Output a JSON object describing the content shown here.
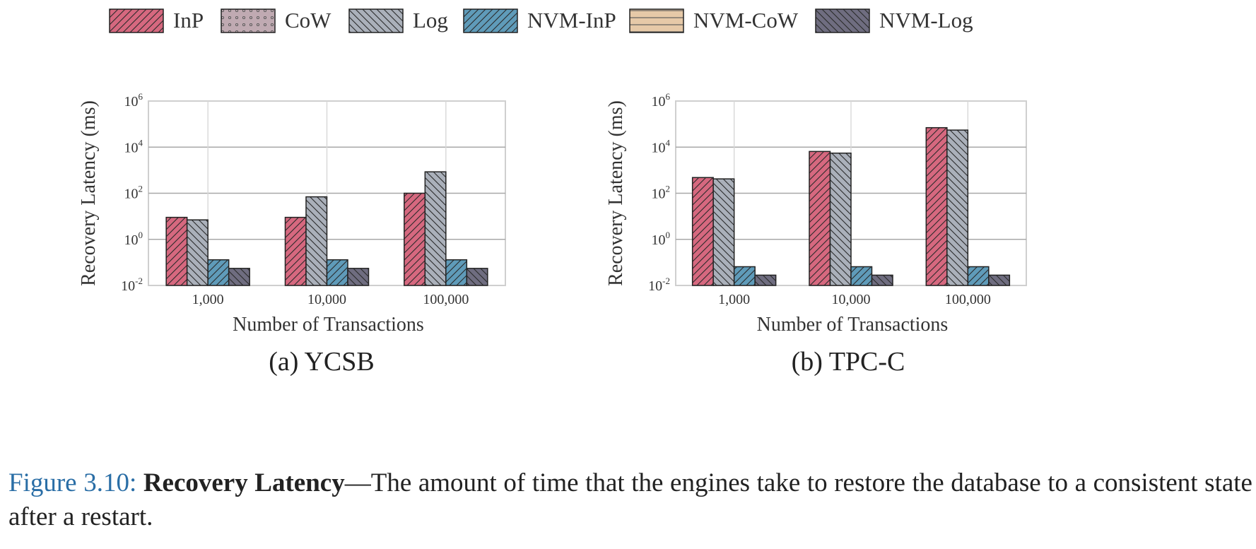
{
  "legend": [
    {
      "name": "InP",
      "color": "#d6687f",
      "pattern": "diag-fwd"
    },
    {
      "name": "CoW",
      "color": "#c0aab2",
      "pattern": "dots"
    },
    {
      "name": "Log",
      "color": "#aab0ba",
      "pattern": "diag-back"
    },
    {
      "name": "NVM-InP",
      "color": "#5f9bb9",
      "pattern": "diag-fwd"
    },
    {
      "name": "NVM-CoW",
      "color": "#e6c9a8",
      "pattern": "horiz"
    },
    {
      "name": "NVM-Log",
      "color": "#6f6d80",
      "pattern": "diag-back"
    }
  ],
  "chart_data": [
    {
      "type": "bar",
      "subtitle": "(a) YCSB",
      "xlabel": "Number of Transactions",
      "ylabel": "Recovery Latency (ms)",
      "yscale": "log",
      "ylim": [
        0.01,
        1000000
      ],
      "yticks": [
        {
          "base": "10",
          "exp": "-2"
        },
        {
          "base": "10",
          "exp": "0"
        },
        {
          "base": "10",
          "exp": "2"
        },
        {
          "base": "10",
          "exp": "4"
        },
        {
          "base": "10",
          "exp": "6"
        }
      ],
      "categories": [
        "1,000",
        "10,000",
        "100,000"
      ],
      "series": [
        {
          "name": "InP",
          "values": [
            9,
            9,
            100
          ]
        },
        {
          "name": "Log",
          "values": [
            7,
            70,
            850
          ]
        },
        {
          "name": "NVM-InP",
          "values": [
            0.13,
            0.13,
            0.13
          ]
        },
        {
          "name": "NVM-Log",
          "values": [
            0.055,
            0.055,
            0.055
          ]
        }
      ]
    },
    {
      "type": "bar",
      "subtitle": "(b) TPC-C",
      "xlabel": "Number of Transactions",
      "ylabel": "Recovery Latency (ms)",
      "yscale": "log",
      "ylim": [
        0.01,
        1000000
      ],
      "yticks": [
        {
          "base": "10",
          "exp": "-2"
        },
        {
          "base": "10",
          "exp": "0"
        },
        {
          "base": "10",
          "exp": "2"
        },
        {
          "base": "10",
          "exp": "4"
        },
        {
          "base": "10",
          "exp": "6"
        }
      ],
      "categories": [
        "1,000",
        "10,000",
        "100,000"
      ],
      "series": [
        {
          "name": "InP",
          "values": [
            480,
            6500,
            70000
          ]
        },
        {
          "name": "Log",
          "values": [
            420,
            5500,
            55000
          ]
        },
        {
          "name": "NVM-InP",
          "values": [
            0.065,
            0.065,
            0.065
          ]
        },
        {
          "name": "NVM-Log",
          "values": [
            0.028,
            0.028,
            0.028
          ]
        }
      ]
    }
  ],
  "caption": {
    "figure_label": "Figure 3.10:",
    "title": "Recovery Latency",
    "text": "—The amount of time that the engines take to restore the database to a consistent state after a restart."
  }
}
